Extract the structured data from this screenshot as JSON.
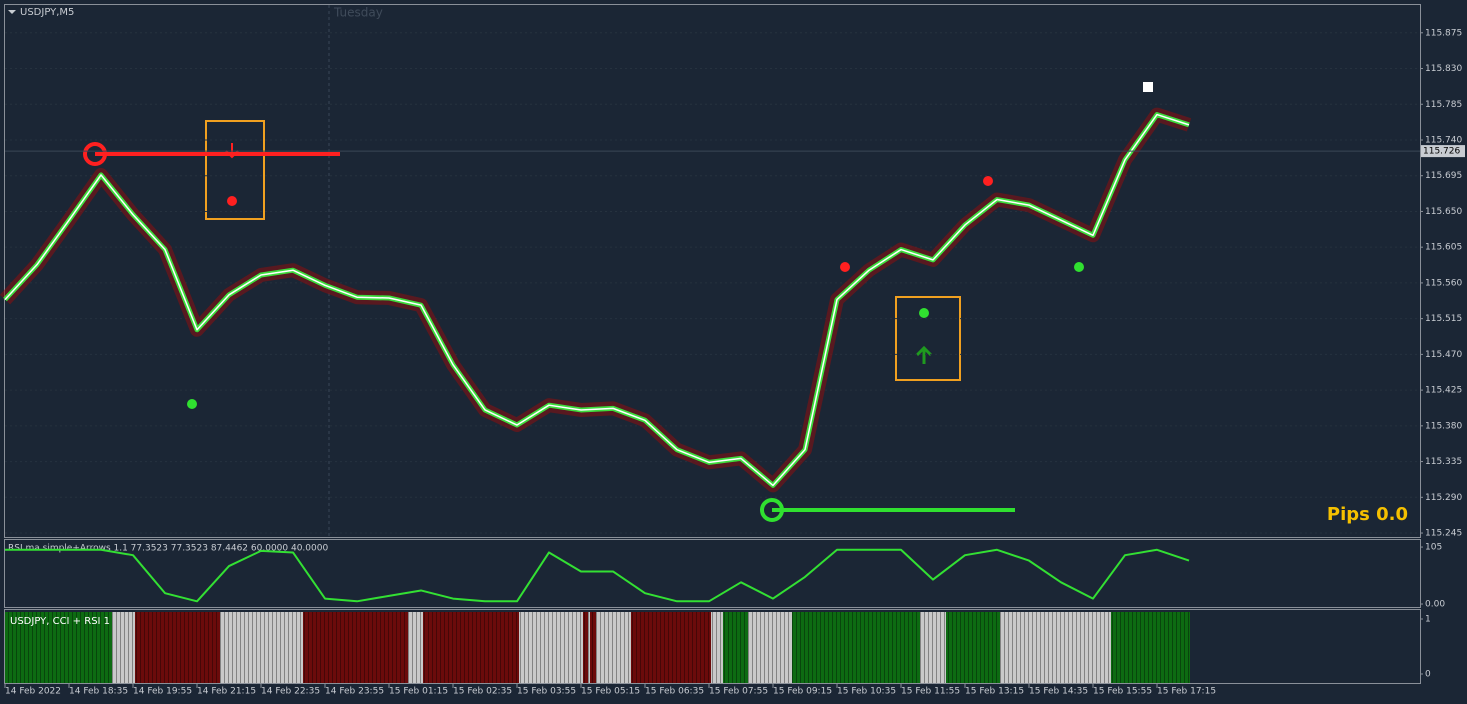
{
  "chart_data": [
    {
      "type": "line",
      "title": "USDJPY,M5",
      "subtitle": "Tuesday",
      "annotation": "Pips 0.0",
      "last_price": 115.726,
      "categories": [
        "14 Feb 2022",
        null,
        "14 Feb 18:35",
        null,
        "14 Feb 19:55",
        null,
        "14 Feb 21:15",
        null,
        "14 Feb 22:35",
        null,
        "14 Feb 23:55",
        null,
        "15 Feb 01:15",
        null,
        "15 Feb 02:35",
        null,
        "15 Feb 03:55",
        null,
        "15 Feb 05:15",
        null,
        "15 Feb 06:35",
        null,
        "15 Feb 07:55",
        null,
        "15 Feb 09:15",
        null,
        "15 Feb 10:35",
        null,
        "15 Feb 11:55",
        null,
        "15 Feb 13:15",
        null,
        "15 Feb 14:35",
        null,
        "15 Feb 15:55",
        null,
        "15 Feb 17:15",
        null
      ],
      "series": [
        {
          "color": "#3ddc3d",
          "values": [
            115.539,
            115.583,
            115.639,
            115.696,
            115.646,
            115.602,
            115.501,
            115.545,
            115.57,
            115.576,
            115.557,
            115.542,
            115.541,
            115.532,
            115.457,
            115.4,
            115.381,
            115.406,
            115.4,
            115.402,
            115.387,
            115.35,
            115.334,
            115.339,
            115.305,
            115.35,
            115.539,
            115.576,
            115.602,
            115.589,
            115.633,
            115.665,
            115.658,
            115.639,
            115.62,
            115.715,
            115.772,
            115.759
          ]
        }
      ],
      "ylim": [
        115.24,
        115.91
      ],
      "yticks": [
        {
          "value": 115.875,
          "label": "115.875"
        },
        {
          "value": 115.83,
          "label": "115.830"
        },
        {
          "value": 115.785,
          "label": "115.785"
        },
        {
          "value": 115.74,
          "label": "115.740"
        },
        {
          "value": 115.695,
          "label": "115.695"
        },
        {
          "value": 115.65,
          "label": "115.650"
        },
        {
          "value": 115.605,
          "label": "115.605"
        },
        {
          "value": 115.56,
          "label": "115.560"
        },
        {
          "value": 115.515,
          "label": "115.515"
        },
        {
          "value": 115.47,
          "label": "115.470"
        },
        {
          "value": 115.425,
          "label": "115.425"
        },
        {
          "value": 115.38,
          "label": "115.380"
        },
        {
          "value": 115.335,
          "label": "115.335"
        },
        {
          "value": 115.29,
          "label": "115.290"
        },
        {
          "value": 115.245,
          "label": "115.245"
        }
      ],
      "grid": true
    },
    {
      "type": "line",
      "title": "RSI ma simple+Arrows 1.1 77.3523 77.3523 87.4462 60.0000 40.0000",
      "series": [
        {
          "color": "#33e033",
          "values": [
            100,
            100,
            100,
            100,
            90,
            20,
            5,
            70,
            98,
            95,
            10,
            5,
            15,
            25,
            10,
            5,
            5,
            95,
            60,
            60,
            20,
            5,
            5,
            40,
            10,
            50,
            100,
            100,
            100,
            45,
            90,
            100,
            80,
            40,
            10,
            90,
            100,
            80
          ]
        }
      ],
      "ylim": [
        -5.5,
        118
      ],
      "yticks": [
        105,
        {
          "value": 0,
          "label": "0.00"
        }
      ]
    }
  ],
  "cci_panel": {
    "title": "USDJPY, CCI + RSI 1",
    "ylim": [
      -0.164,
      1.164
    ],
    "yticks": [
      1,
      0
    ]
  }
}
